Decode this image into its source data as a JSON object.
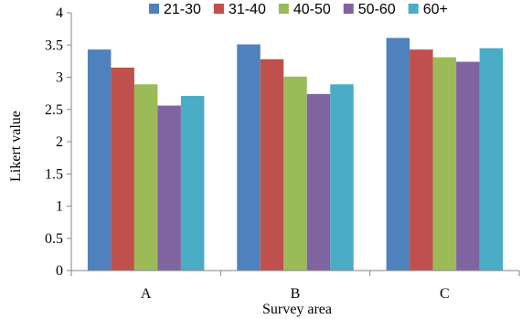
{
  "chart_data": {
    "type": "bar",
    "categories": [
      "A",
      "B",
      "C"
    ],
    "series": [
      {
        "name": "21-30",
        "color": "#4f81bd",
        "values": [
          3.43,
          3.51,
          3.61
        ]
      },
      {
        "name": "31-40",
        "color": "#c0504d",
        "values": [
          3.15,
          3.28,
          3.43
        ]
      },
      {
        "name": "40-50",
        "color": "#9bbb59",
        "values": [
          2.89,
          3.01,
          3.31
        ]
      },
      {
        "name": "50-60",
        "color": "#8064a2",
        "values": [
          2.56,
          2.74,
          3.24
        ]
      },
      {
        "name": "60+",
        "color": "#4bacc6",
        "values": [
          2.71,
          2.89,
          3.45
        ]
      }
    ],
    "xlabel": "Survey area",
    "ylabel": "Likert value",
    "ylim": [
      0,
      4
    ],
    "yticks": [
      "0",
      "0.5",
      "1",
      "1.5",
      "2",
      "2.5",
      "3",
      "3.5",
      "4"
    ],
    "grid": false,
    "legend": "top"
  }
}
